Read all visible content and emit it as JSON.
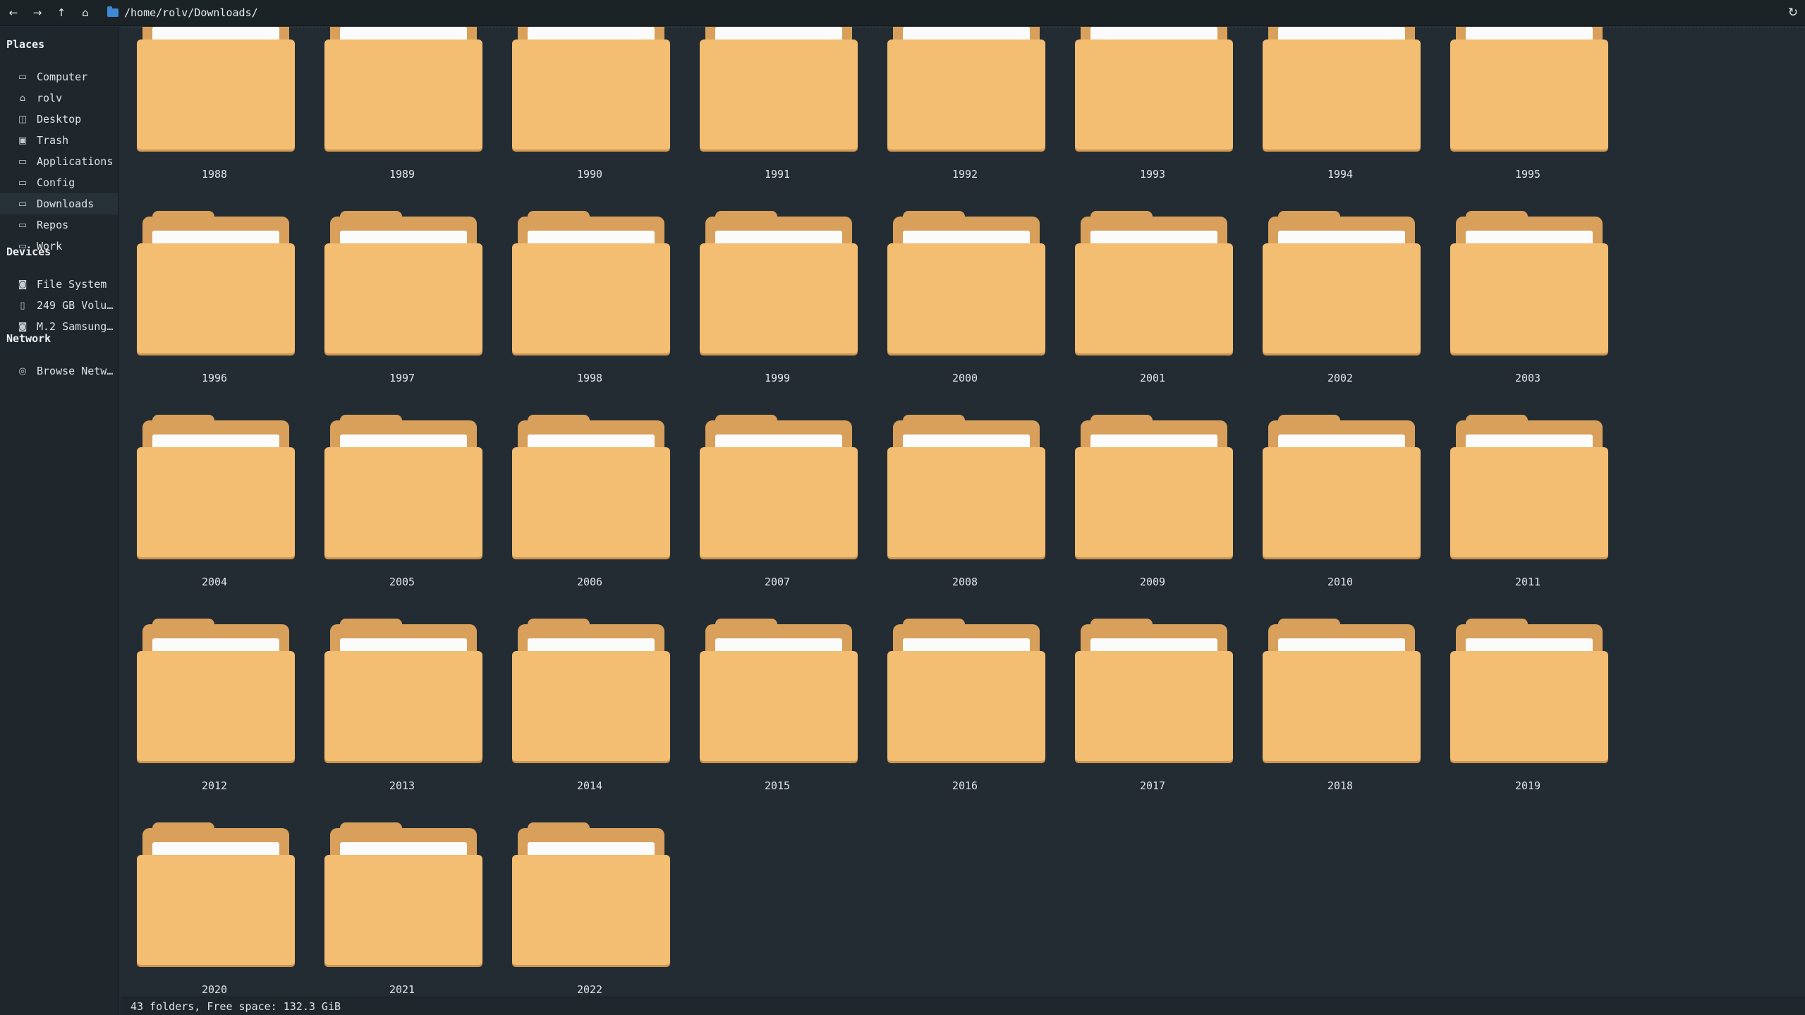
{
  "toolbar": {
    "back": "←",
    "forward": "→",
    "up": "↑",
    "home": "⌂",
    "path": "/home/rolv/Downloads/",
    "reload": "↻"
  },
  "sidebar": {
    "places_header": "Places",
    "places": [
      {
        "label": "Computer",
        "icon": "computer-icon",
        "glyph": "▭"
      },
      {
        "label": "rolv",
        "icon": "home-icon",
        "glyph": "⌂"
      },
      {
        "label": "Desktop",
        "icon": "desktop-icon",
        "glyph": "◫"
      },
      {
        "label": "Trash",
        "icon": "trash-icon",
        "glyph": "▣"
      },
      {
        "label": "Applications",
        "icon": "folder-icon",
        "glyph": "▭"
      },
      {
        "label": "Config",
        "icon": "folder-icon",
        "glyph": "▭"
      },
      {
        "label": "Downloads",
        "icon": "folder-icon",
        "glyph": "▭"
      },
      {
        "label": "Repos",
        "icon": "folder-icon",
        "glyph": "▭"
      },
      {
        "label": "Work",
        "icon": "folder-icon",
        "glyph": "▭"
      }
    ],
    "devices_header": "Devices",
    "devices": [
      {
        "label": "File System",
        "icon": "drive-icon",
        "glyph": "◙"
      },
      {
        "label": "249 GB Volu…",
        "icon": "drive-icon",
        "glyph": "▯"
      },
      {
        "label": "M.2 Samsung…",
        "icon": "drive-icon",
        "glyph": "◙"
      }
    ],
    "network_header": "Network",
    "network": [
      {
        "label": "Browse Netw…",
        "icon": "network-icon",
        "glyph": "◎"
      }
    ]
  },
  "folders": [
    "1988",
    "1989",
    "1990",
    "1991",
    "1992",
    "1993",
    "1994",
    "1995",
    "1996",
    "1997",
    "1998",
    "1999",
    "2000",
    "2001",
    "2002",
    "2003",
    "2004",
    "2005",
    "2006",
    "2007",
    "2008",
    "2009",
    "2010",
    "2011",
    "2012",
    "2013",
    "2014",
    "2015",
    "2016",
    "2017",
    "2018",
    "2019",
    "2020",
    "2021",
    "2022"
  ],
  "status": "43 folders, Free space: 132.3 GiB",
  "colors": {
    "folder_front": "#f3bd72",
    "folder_back": "#d8a05b",
    "background": "#232c33",
    "path_icon": "#3e88d6"
  }
}
